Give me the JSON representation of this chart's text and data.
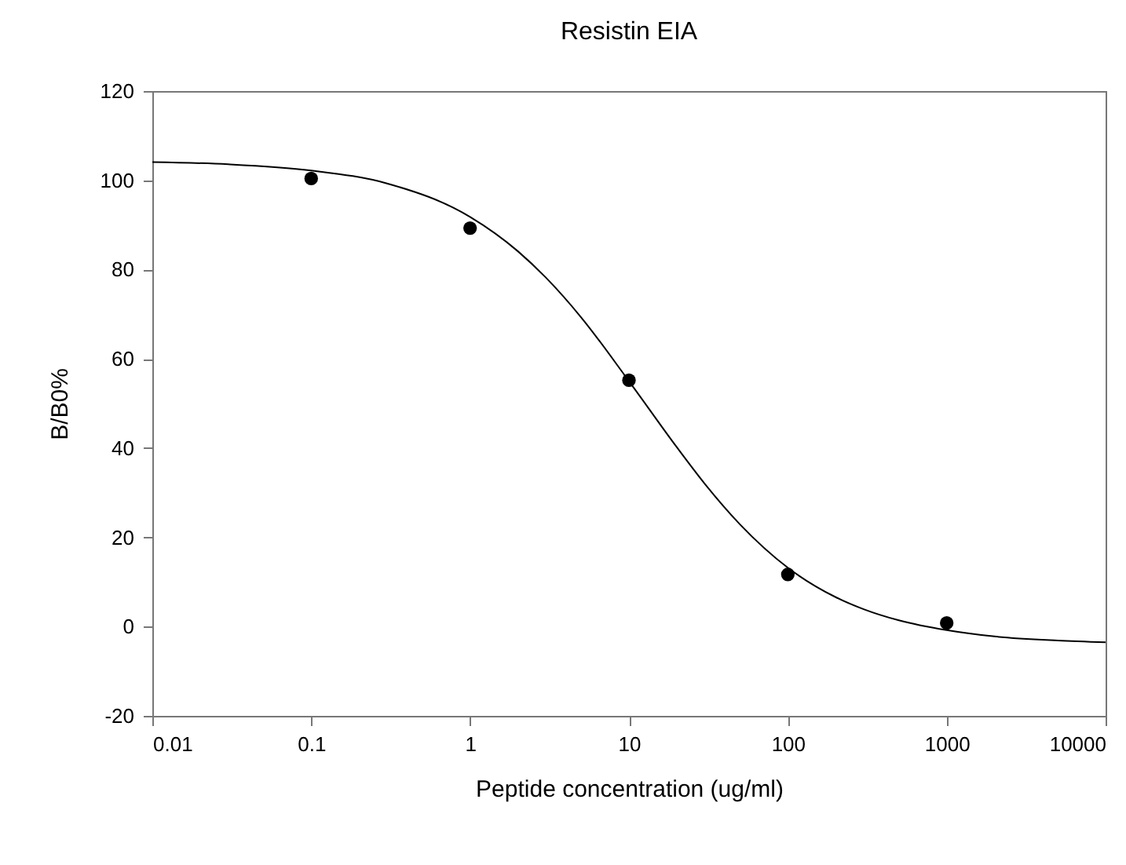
{
  "chart_data": {
    "type": "scatter",
    "title": "Resistin EIA",
    "xlabel": "Peptide concentration (ug/ml)",
    "ylabel": "B/B0%",
    "log": "x",
    "xlim": [
      0.01,
      10000
    ],
    "xticks": [
      0.01,
      0.1,
      1,
      10,
      100,
      1000,
      10000
    ],
    "ylim": [
      -20,
      120
    ],
    "yticks": [
      -20,
      0,
      20,
      40,
      60,
      80,
      100,
      120
    ],
    "grid": false,
    "series": [
      {
        "type": "line",
        "color": "#000000",
        "marker": "none",
        "x": [
          0.01,
          0.03,
          0.1,
          0.3,
          1,
          2,
          3,
          5,
          10,
          20,
          30,
          50,
          100,
          200,
          300,
          500,
          1000,
          2000,
          5000,
          10000
        ],
        "values": [
          104.1,
          103.6,
          102.2,
          99.3,
          91.8,
          84.1,
          78.2,
          69.3,
          55.0,
          40.2,
          32.0,
          22.9,
          13.2,
          6.6,
          3.9,
          1.4,
          -0.8,
          -2.2,
          -3.1,
          -3.5
        ]
      },
      {
        "color": "#000000",
        "marker": "circle",
        "x": [
          0.1,
          1,
          10,
          100,
          1000
        ],
        "values": [
          100.4,
          89.3,
          55.2,
          11.7,
          0.8
        ]
      }
    ]
  }
}
